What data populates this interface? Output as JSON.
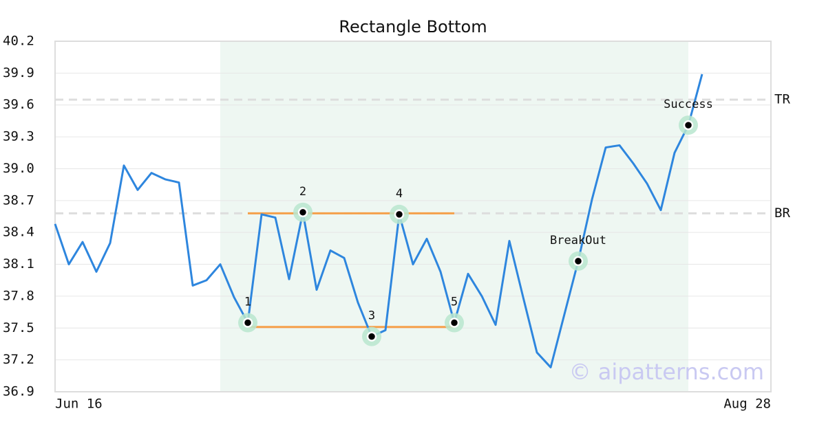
{
  "chart_data": {
    "type": "line",
    "title": "Rectangle Bottom",
    "categories": [
      "Jun 16",
      null,
      null,
      null,
      null,
      null,
      null,
      null,
      null,
      null,
      null,
      null,
      null,
      null,
      null,
      null,
      null,
      null,
      null,
      null,
      null,
      null,
      null,
      null,
      null,
      null,
      null,
      null,
      null,
      null,
      null,
      null,
      null,
      null,
      null,
      null,
      null,
      null,
      null,
      null,
      null,
      null,
      null,
      null,
      null,
      null,
      null,
      null,
      null,
      null,
      null,
      null,
      "Aug 28"
    ],
    "values": [
      38.48,
      38.1,
      38.31,
      38.03,
      38.3,
      39.03,
      38.8,
      38.96,
      38.9,
      38.87,
      37.9,
      37.95,
      38.1,
      37.79,
      37.55,
      38.57,
      38.54,
      37.96,
      38.59,
      37.86,
      38.23,
      38.16,
      37.74,
      37.42,
      37.48,
      38.57,
      38.1,
      38.34,
      38.03,
      37.55,
      38.01,
      37.8,
      37.53,
      38.32,
      37.79,
      37.27,
      37.13,
      37.63,
      38.13,
      38.71,
      39.2,
      39.22,
      39.05,
      38.86,
      38.61,
      39.15,
      39.41,
      39.89,
      null,
      null,
      null,
      null,
      null
    ],
    "color": "#2e86de",
    "ylim": [
      36.9,
      40.2
    ],
    "yticks": [
      36.9,
      37.2,
      37.5,
      37.8,
      38.1,
      38.4,
      38.7,
      {
        "value": 39,
        "label": "39.0"
      },
      39.3,
      39.6,
      39.9,
      40.2
    ],
    "grid": true,
    "shaded_x": [
      12,
      46
    ],
    "hlines": [
      {
        "label": "TR",
        "value": 39.65
      },
      {
        "label": "BR",
        "value": 38.58
      }
    ],
    "segments": [
      {
        "x": [
          14,
          29
        ],
        "y": [
          38.58,
          38.58
        ]
      },
      {
        "x": [
          14,
          29
        ],
        "y": [
          37.51,
          37.51
        ]
      }
    ],
    "annotations": [
      {
        "label": "1",
        "x": 14,
        "y": 37.55
      },
      {
        "label": "2",
        "x": 18,
        "y": 38.59
      },
      {
        "label": "3",
        "x": 23,
        "y": 37.42
      },
      {
        "label": "4",
        "x": 25,
        "y": 38.57
      },
      {
        "label": "5",
        "x": 29,
        "y": 37.55
      },
      {
        "label": "BreakOut",
        "x": 38,
        "y": 38.13
      },
      {
        "label": "Success",
        "x": 46,
        "y": 39.41
      }
    ],
    "watermark": "© aipatterns.com"
  }
}
